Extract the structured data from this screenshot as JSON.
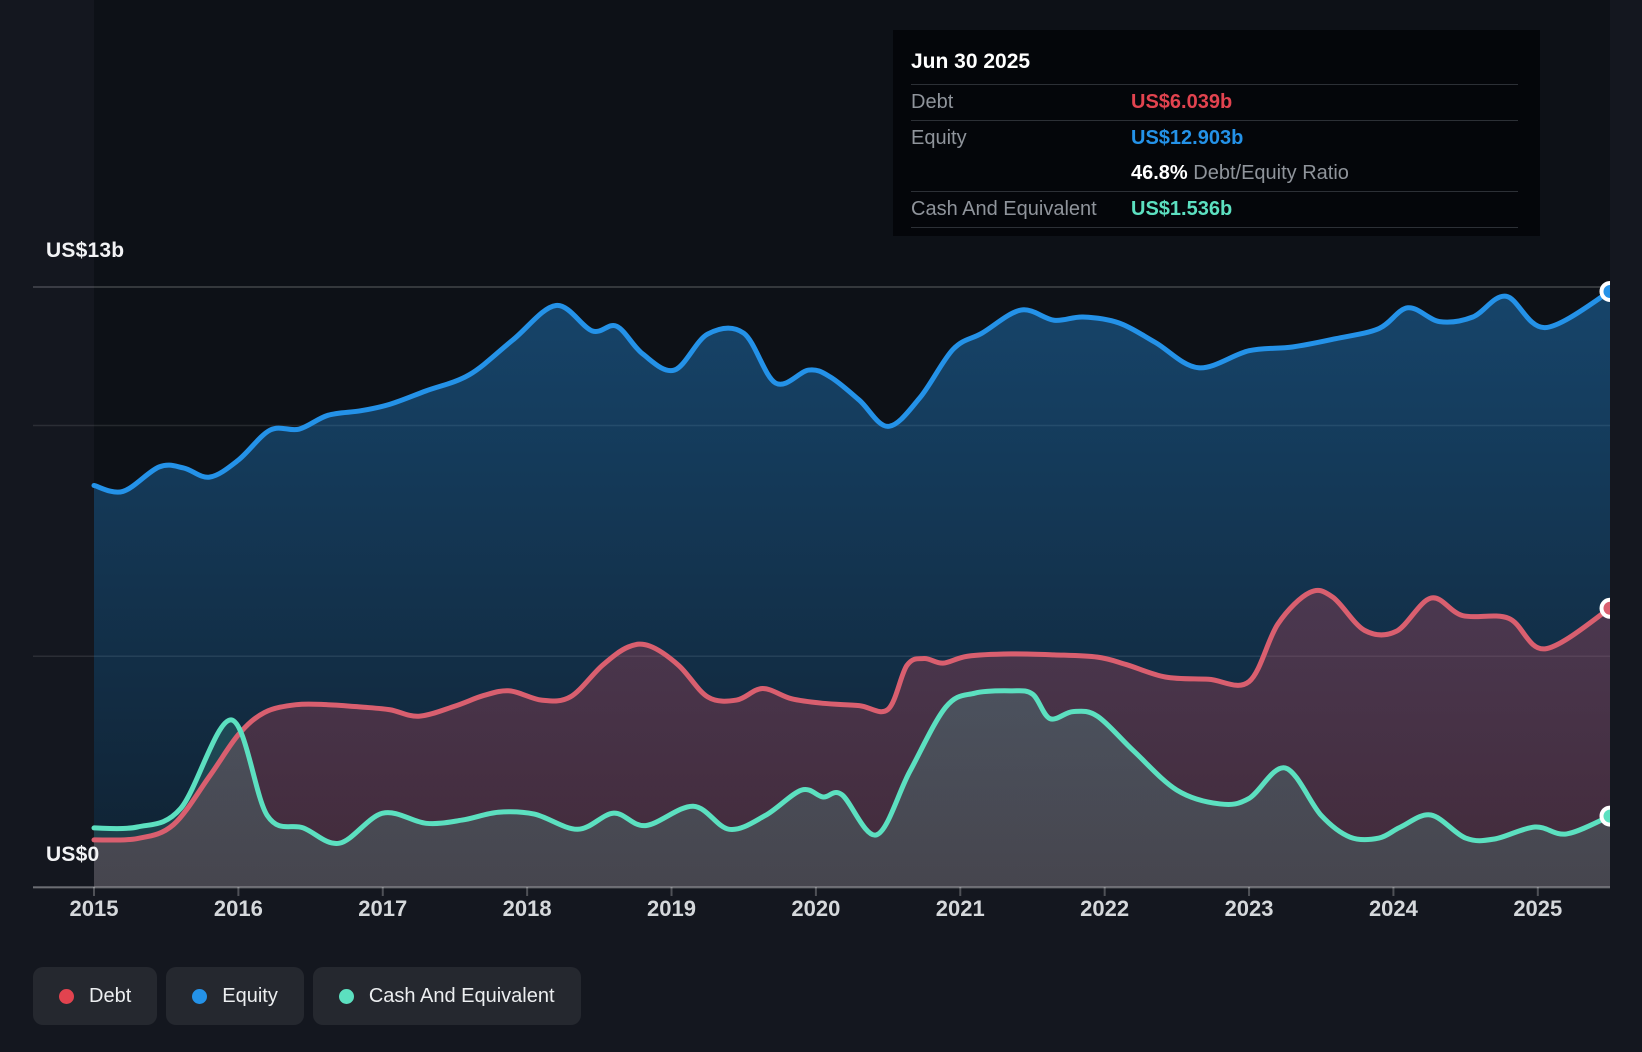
{
  "colors": {
    "page_bg": "#14171f",
    "plot_bg": "#0d1117",
    "debt": "#d95f6f",
    "debt_bright": "#e2434f",
    "equity": "#2492e8",
    "cash": "#5ce0c0",
    "grid_strong": "rgba(255,255,255,0.22)",
    "grid_faint": "rgba(255,255,255,0.10)",
    "axis": "rgba(255,255,255,0.25)"
  },
  "y_axis": {
    "top_label": "US$13b",
    "zero_label": "US$0"
  },
  "x_axis": {
    "years": [
      2015,
      2016,
      2017,
      2018,
      2019,
      2020,
      2021,
      2022,
      2023,
      2024,
      2025
    ]
  },
  "tooltip": {
    "date": "Jun 30 2025",
    "debt_label": "Debt",
    "debt_value": "US$6.039b",
    "equity_label": "Equity",
    "equity_value": "US$12.903b",
    "ratio_value": "46.8%",
    "ratio_label": " Debt/Equity Ratio",
    "cash_label": "Cash And Equivalent",
    "cash_value": "US$1.536b"
  },
  "legend": {
    "items": [
      {
        "label": "Debt",
        "color": "#e2434f"
      },
      {
        "label": "Equity",
        "color": "#2492e8"
      },
      {
        "label": "Cash And Equivalent",
        "color": "#5ce0c0"
      }
    ]
  },
  "chart_data": {
    "type": "area",
    "x_range": [
      2015,
      2025.5
    ],
    "ylim": [
      0,
      13
    ],
    "y_unit": "US$ billions",
    "grid": "on",
    "gridline_values": [
      13,
      10,
      5,
      0
    ],
    "legend_position": "bottom-left",
    "marker_date": "Jun 30 2025",
    "series": [
      {
        "name": "Equity",
        "color": "#2492e8",
        "end_value": 12.903,
        "points": [
          [
            2015.0,
            8.7
          ],
          [
            2015.2,
            8.57
          ],
          [
            2015.45,
            9.1
          ],
          [
            2015.62,
            9.08
          ],
          [
            2015.8,
            8.88
          ],
          [
            2016.0,
            9.25
          ],
          [
            2016.22,
            9.9
          ],
          [
            2016.42,
            9.92
          ],
          [
            2016.62,
            10.22
          ],
          [
            2016.85,
            10.32
          ],
          [
            2017.05,
            10.46
          ],
          [
            2017.3,
            10.75
          ],
          [
            2017.6,
            11.1
          ],
          [
            2017.9,
            11.85
          ],
          [
            2018.2,
            12.6
          ],
          [
            2018.45,
            12.05
          ],
          [
            2018.62,
            12.15
          ],
          [
            2018.8,
            11.55
          ],
          [
            2019.02,
            11.2
          ],
          [
            2019.25,
            11.98
          ],
          [
            2019.5,
            12.0
          ],
          [
            2019.72,
            10.92
          ],
          [
            2019.95,
            11.2
          ],
          [
            2020.1,
            11.05
          ],
          [
            2020.3,
            10.55
          ],
          [
            2020.5,
            9.98
          ],
          [
            2020.72,
            10.6
          ],
          [
            2020.95,
            11.65
          ],
          [
            2021.15,
            12.0
          ],
          [
            2021.42,
            12.5
          ],
          [
            2021.65,
            12.28
          ],
          [
            2021.85,
            12.35
          ],
          [
            2022.1,
            12.22
          ],
          [
            2022.35,
            11.8
          ],
          [
            2022.65,
            11.25
          ],
          [
            2023.0,
            11.62
          ],
          [
            2023.3,
            11.7
          ],
          [
            2023.6,
            11.88
          ],
          [
            2023.9,
            12.1
          ],
          [
            2024.1,
            12.55
          ],
          [
            2024.32,
            12.25
          ],
          [
            2024.55,
            12.35
          ],
          [
            2024.78,
            12.8
          ],
          [
            2025.05,
            12.12
          ],
          [
            2025.5,
            12.903
          ]
        ]
      },
      {
        "name": "Debt",
        "color": "#d95f6f",
        "end_value": 6.039,
        "points": [
          [
            2015.0,
            1.02
          ],
          [
            2015.3,
            1.05
          ],
          [
            2015.55,
            1.35
          ],
          [
            2015.8,
            2.4
          ],
          [
            2016.0,
            3.3
          ],
          [
            2016.18,
            3.78
          ],
          [
            2016.4,
            3.95
          ],
          [
            2016.62,
            3.95
          ],
          [
            2016.85,
            3.9
          ],
          [
            2017.05,
            3.84
          ],
          [
            2017.25,
            3.7
          ],
          [
            2017.5,
            3.92
          ],
          [
            2017.7,
            4.15
          ],
          [
            2017.88,
            4.25
          ],
          [
            2018.1,
            4.05
          ],
          [
            2018.3,
            4.12
          ],
          [
            2018.52,
            4.8
          ],
          [
            2018.7,
            5.2
          ],
          [
            2018.85,
            5.22
          ],
          [
            2019.05,
            4.8
          ],
          [
            2019.25,
            4.12
          ],
          [
            2019.45,
            4.05
          ],
          [
            2019.63,
            4.3
          ],
          [
            2019.83,
            4.08
          ],
          [
            2020.05,
            3.98
          ],
          [
            2020.3,
            3.93
          ],
          [
            2020.5,
            3.85
          ],
          [
            2020.63,
            4.8
          ],
          [
            2020.75,
            4.95
          ],
          [
            2020.88,
            4.85
          ],
          [
            2021.05,
            5.0
          ],
          [
            2021.35,
            5.05
          ],
          [
            2021.65,
            5.03
          ],
          [
            2021.95,
            4.98
          ],
          [
            2022.15,
            4.82
          ],
          [
            2022.42,
            4.55
          ],
          [
            2022.72,
            4.5
          ],
          [
            2023.0,
            4.45
          ],
          [
            2023.2,
            5.7
          ],
          [
            2023.42,
            6.38
          ],
          [
            2023.58,
            6.28
          ],
          [
            2023.8,
            5.56
          ],
          [
            2024.02,
            5.54
          ],
          [
            2024.26,
            6.26
          ],
          [
            2024.48,
            5.88
          ],
          [
            2024.8,
            5.82
          ],
          [
            2025.05,
            5.16
          ],
          [
            2025.5,
            6.039
          ]
        ]
      },
      {
        "name": "Cash And Equivalent",
        "color": "#5ce0c0",
        "end_value": 1.536,
        "points": [
          [
            2015.0,
            1.28
          ],
          [
            2015.3,
            1.3
          ],
          [
            2015.6,
            1.7
          ],
          [
            2015.95,
            3.62
          ],
          [
            2016.2,
            1.55
          ],
          [
            2016.45,
            1.28
          ],
          [
            2016.7,
            0.95
          ],
          [
            2017.0,
            1.6
          ],
          [
            2017.3,
            1.38
          ],
          [
            2017.55,
            1.45
          ],
          [
            2017.8,
            1.62
          ],
          [
            2018.05,
            1.58
          ],
          [
            2018.35,
            1.25
          ],
          [
            2018.6,
            1.6
          ],
          [
            2018.82,
            1.33
          ],
          [
            2019.15,
            1.75
          ],
          [
            2019.4,
            1.25
          ],
          [
            2019.65,
            1.55
          ],
          [
            2019.9,
            2.1
          ],
          [
            2020.05,
            1.95
          ],
          [
            2020.18,
            2.0
          ],
          [
            2020.42,
            1.13
          ],
          [
            2020.65,
            2.5
          ],
          [
            2020.9,
            3.9
          ],
          [
            2021.1,
            4.2
          ],
          [
            2021.35,
            4.25
          ],
          [
            2021.5,
            4.18
          ],
          [
            2021.62,
            3.65
          ],
          [
            2021.78,
            3.8
          ],
          [
            2021.95,
            3.7
          ],
          [
            2022.2,
            2.95
          ],
          [
            2022.5,
            2.1
          ],
          [
            2022.8,
            1.8
          ],
          [
            2023.0,
            1.92
          ],
          [
            2023.25,
            2.58
          ],
          [
            2023.5,
            1.55
          ],
          [
            2023.7,
            1.08
          ],
          [
            2023.9,
            1.06
          ],
          [
            2024.05,
            1.3
          ],
          [
            2024.26,
            1.56
          ],
          [
            2024.5,
            1.06
          ],
          [
            2024.7,
            1.04
          ],
          [
            2024.98,
            1.3
          ],
          [
            2025.2,
            1.15
          ],
          [
            2025.5,
            1.536
          ]
        ]
      }
    ]
  }
}
